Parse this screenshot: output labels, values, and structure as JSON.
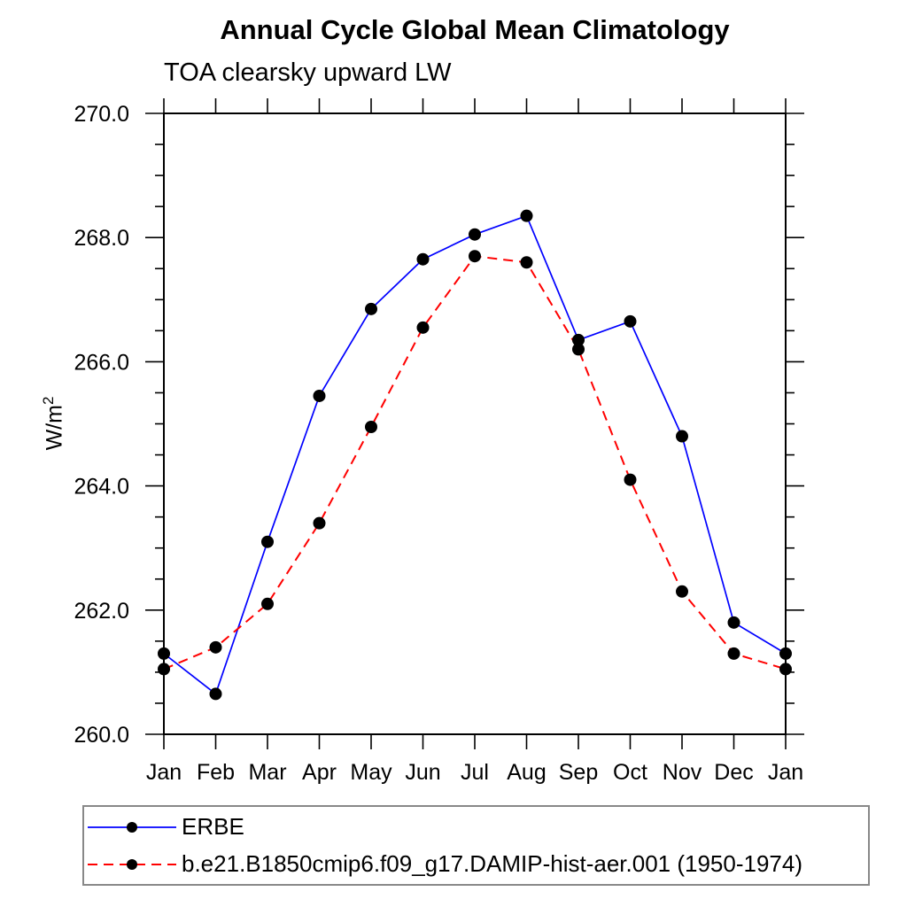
{
  "page": {
    "background": "#ffffff"
  },
  "chart_data": {
    "type": "line",
    "title": "Annual Cycle Global Mean Climatology",
    "subtitle": "TOA clearsky upward LW",
    "ylabel_base": "W/m",
    "ylabel_exponent": "2",
    "categories": [
      "Jan",
      "Feb",
      "Mar",
      "Apr",
      "May",
      "Jun",
      "Jul",
      "Aug",
      "Sep",
      "Oct",
      "Nov",
      "Dec",
      "Jan"
    ],
    "ylim": [
      260.0,
      270.0
    ],
    "y_ticks": {
      "values": [
        260,
        262,
        264,
        266,
        268,
        270
      ],
      "labels": [
        "260.0",
        "262.0",
        "264.0",
        "266.0",
        "268.0",
        "270.0"
      ],
      "minor_step": 0.5
    },
    "grid": false,
    "frame": "box-with-outward-ticks",
    "marker": {
      "shape": "circle",
      "color": "#000000"
    },
    "legend_position": "bottom-left",
    "series": [
      {
        "name": "ERBE",
        "color": "#0000ff",
        "line_style": "solid",
        "values": [
          261.3,
          260.65,
          263.1,
          265.45,
          266.85,
          267.65,
          268.05,
          268.35,
          266.35,
          266.65,
          264.8,
          261.8,
          261.3
        ]
      },
      {
        "name": "b.e21.B1850cmip6.f09_g17.DAMIP-hist-aer.001 (1950-1974)",
        "color": "#ff0000",
        "line_style": "dashed",
        "values": [
          261.05,
          261.4,
          262.1,
          263.4,
          264.95,
          266.55,
          267.7,
          267.6,
          266.2,
          264.1,
          262.3,
          261.3,
          261.05
        ]
      }
    ]
  }
}
